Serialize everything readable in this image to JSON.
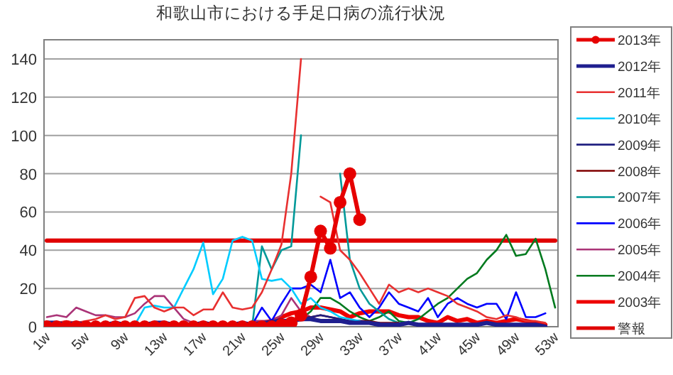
{
  "chart_data": {
    "type": "line",
    "title": "和歌山市における手足口病の流行状況",
    "categories": [
      "1w",
      null,
      null,
      null,
      "5w",
      null,
      null,
      null,
      "9w",
      null,
      null,
      null,
      "13w",
      null,
      null,
      null,
      "17w",
      null,
      null,
      null,
      "21w",
      null,
      null,
      null,
      "25w",
      null,
      null,
      null,
      "29w",
      null,
      null,
      null,
      "33w",
      null,
      null,
      null,
      "37w",
      null,
      null,
      null,
      "41w",
      null,
      null,
      null,
      "45w",
      null,
      null,
      null,
      "49w",
      null,
      null,
      null,
      "53w"
    ],
    "ylim": [
      0,
      150
    ],
    "yticks": [
      0,
      20,
      40,
      60,
      80,
      100,
      120,
      140
    ],
    "grid": "y",
    "legend": "right",
    "series": [
      {
        "name": "2013年",
        "color": "#e60000",
        "marker": "circle",
        "values": [
          0,
          0,
          0,
          0,
          0,
          0,
          0,
          0,
          0,
          0,
          0,
          0,
          0,
          0,
          0,
          0,
          0,
          0,
          0,
          0,
          0,
          0,
          0,
          0,
          1,
          2,
          6,
          26,
          50,
          41,
          65,
          80,
          56,
          null,
          null,
          null,
          null,
          null,
          null,
          null,
          null,
          null,
          null,
          null,
          null,
          null,
          null,
          null,
          null,
          null,
          null,
          null,
          null
        ]
      },
      {
        "name": "2012年",
        "color": "#1f1f8f",
        "values": [
          2,
          2,
          1,
          2,
          1,
          1,
          1,
          2,
          1,
          1,
          1,
          2,
          2,
          1,
          1,
          1,
          2,
          1,
          1,
          1,
          2,
          1,
          2,
          2,
          3,
          3,
          4,
          4,
          3,
          3,
          3,
          2,
          2,
          2,
          1,
          1,
          1,
          2,
          1,
          1,
          1,
          1,
          1,
          1,
          1,
          2,
          1,
          1,
          1,
          1,
          1,
          0,
          null
        ]
      },
      {
        "name": "2011年",
        "color": "#e83030",
        "values": [
          2,
          2,
          3,
          2,
          3,
          4,
          6,
          4,
          5,
          15,
          16,
          10,
          8,
          10,
          10,
          6,
          9,
          9,
          18,
          10,
          9,
          10,
          18,
          30,
          43,
          80,
          140,
          null,
          68,
          65,
          40,
          35,
          28,
          20,
          12,
          22,
          18,
          20,
          18,
          20,
          18,
          16,
          12,
          10,
          8,
          5,
          4,
          6,
          5,
          3,
          3,
          2,
          null
        ]
      },
      {
        "name": "2010年",
        "color": "#00ccff",
        "values": [
          null,
          null,
          null,
          null,
          null,
          null,
          null,
          null,
          null,
          1,
          10,
          11,
          10,
          10,
          20,
          30,
          44,
          17,
          25,
          45,
          47,
          45,
          25,
          24,
          25,
          20,
          12,
          15,
          10,
          8,
          5,
          4,
          3,
          null,
          null,
          null,
          null,
          null,
          null,
          null,
          null,
          null,
          null,
          null,
          null,
          null,
          null,
          null,
          null,
          null,
          null,
          null,
          null
        ]
      },
      {
        "name": "2009年",
        "color": "#202080",
        "values": [
          null,
          null,
          null,
          null,
          null,
          null,
          null,
          null,
          null,
          null,
          null,
          null,
          null,
          null,
          null,
          null,
          null,
          null,
          null,
          null,
          null,
          2,
          2,
          3,
          4,
          3,
          4,
          5,
          6,
          5,
          4,
          3,
          3,
          2,
          2,
          null,
          null,
          null,
          null,
          null,
          null,
          null,
          null,
          null,
          null,
          null,
          null,
          null,
          null,
          null,
          null,
          null,
          null
        ]
      },
      {
        "name": "2008年",
        "color": "#800000",
        "values": [
          null,
          null,
          null,
          null,
          null,
          null,
          null,
          null,
          null,
          null,
          null,
          null,
          null,
          null,
          null,
          null,
          null,
          null,
          null,
          null,
          null,
          null,
          2,
          3,
          3,
          4,
          5,
          5,
          6,
          5,
          4,
          3,
          3,
          3,
          2,
          2,
          2,
          null,
          null,
          null,
          null,
          null,
          null,
          null,
          null,
          null,
          null,
          null,
          null,
          null,
          null,
          null,
          null
        ]
      },
      {
        "name": "2007年",
        "color": "#009999",
        "values": [
          null,
          null,
          null,
          null,
          null,
          null,
          null,
          null,
          null,
          null,
          null,
          null,
          null,
          null,
          null,
          null,
          null,
          null,
          null,
          null,
          null,
          0,
          42,
          30,
          40,
          42,
          100,
          null,
          null,
          null,
          80,
          35,
          20,
          12,
          8,
          4,
          2,
          null,
          null,
          null,
          null,
          null,
          null,
          null,
          null,
          null,
          null,
          null,
          null,
          null,
          null,
          null,
          null
        ]
      },
      {
        "name": "2006年",
        "color": "#0000ff",
        "values": [
          null,
          null,
          null,
          null,
          null,
          null,
          null,
          null,
          null,
          null,
          null,
          null,
          null,
          null,
          null,
          null,
          null,
          null,
          null,
          null,
          null,
          1,
          10,
          3,
          12,
          20,
          20,
          22,
          18,
          35,
          15,
          18,
          10,
          5,
          10,
          18,
          12,
          10,
          8,
          15,
          5,
          12,
          15,
          12,
          10,
          12,
          12,
          4,
          18,
          5,
          5,
          7,
          null
        ]
      },
      {
        "name": "2005年",
        "color": "#aa3377",
        "values": [
          5,
          6,
          5,
          10,
          8,
          6,
          6,
          5,
          5,
          7,
          12,
          16,
          16,
          10,
          4,
          2,
          null,
          null,
          null,
          null,
          null,
          3,
          3,
          3,
          6,
          15,
          8,
          5,
          3,
          null,
          null,
          null,
          null,
          null,
          null,
          null,
          null,
          null,
          null,
          null,
          null,
          null,
          null,
          null,
          null,
          null,
          null,
          null,
          null,
          null,
          null,
          null,
          null
        ]
      },
      {
        "name": "2004年",
        "color": "#007a1e",
        "values": [
          null,
          null,
          null,
          null,
          null,
          null,
          null,
          null,
          null,
          null,
          null,
          null,
          null,
          null,
          null,
          null,
          null,
          null,
          null,
          null,
          null,
          null,
          null,
          null,
          null,
          3,
          4,
          8,
          15,
          15,
          12,
          8,
          5,
          3,
          5,
          8,
          3,
          2,
          4,
          8,
          12,
          15,
          20,
          25,
          28,
          35,
          40,
          48,
          37,
          38,
          46,
          30,
          10
        ]
      },
      {
        "name": "2003年",
        "color": "#ee0000",
        "values": [
          null,
          null,
          null,
          null,
          null,
          null,
          null,
          null,
          null,
          null,
          null,
          null,
          null,
          null,
          null,
          null,
          null,
          null,
          null,
          null,
          null,
          2,
          2,
          3,
          5,
          7,
          8,
          10,
          10,
          9,
          8,
          5,
          7,
          8,
          8,
          8,
          6,
          5,
          5,
          3,
          2,
          5,
          3,
          4,
          2,
          3,
          2,
          3,
          4,
          3,
          2,
          1,
          null
        ]
      },
      {
        "name": "警報",
        "color": "#e00000",
        "values": [
          45,
          45,
          45,
          45,
          45,
          45,
          45,
          45,
          45,
          45,
          45,
          45,
          45,
          45,
          45,
          45,
          45,
          45,
          45,
          45,
          45,
          45,
          45,
          45,
          45,
          45,
          45,
          45,
          45,
          45,
          45,
          45,
          45,
          45,
          45,
          45,
          45,
          45,
          45,
          45,
          45,
          45,
          45,
          45,
          45,
          45,
          45,
          45,
          45,
          45,
          45,
          45,
          45
        ]
      }
    ]
  }
}
